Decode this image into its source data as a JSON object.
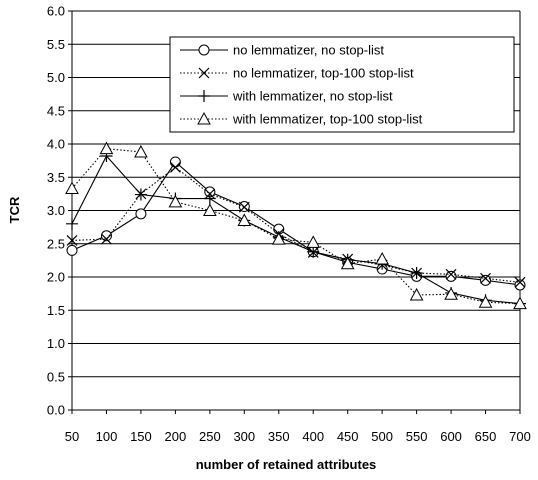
{
  "chart_data": {
    "type": "line",
    "title": "",
    "xlabel": "number of retained attributes",
    "ylabel": "TCR",
    "x": [
      50,
      100,
      150,
      200,
      250,
      300,
      350,
      400,
      450,
      500,
      550,
      600,
      650,
      700
    ],
    "ylim": [
      0,
      6
    ],
    "y_ticks": [
      0.0,
      0.5,
      1.0,
      1.5,
      2.0,
      2.5,
      3.0,
      3.5,
      4.0,
      4.5,
      5.0,
      5.5,
      6.0
    ],
    "y_tick_labels": [
      "0.0",
      "0.5",
      "1.0",
      "1.5",
      "2.0",
      "2.5",
      "3.0",
      "3.5",
      "4.0",
      "4.5",
      "5.0",
      "5.5",
      "6.0"
    ],
    "x_tick_labels": [
      "50",
      "100",
      "150",
      "200",
      "250",
      "300",
      "350",
      "400",
      "450",
      "500",
      "550",
      "600",
      "650",
      "700"
    ],
    "grid": "horizontal",
    "legend_position": "top-right",
    "series": [
      {
        "name": "no lemmatizer, no stop-list",
        "marker": "circle",
        "line_style": "solid",
        "values": [
          2.4,
          2.62,
          2.95,
          3.73,
          3.28,
          3.06,
          2.72,
          2.38,
          2.22,
          2.12,
          2.01,
          2.01,
          1.95,
          1.88
        ]
      },
      {
        "name": "no lemmatizer, top-100 stop-list",
        "marker": "x",
        "line_style": "dotted",
        "values": [
          2.55,
          2.57,
          3.25,
          3.65,
          3.25,
          3.05,
          2.65,
          2.37,
          2.27,
          2.18,
          2.06,
          2.04,
          1.98,
          1.92
        ]
      },
      {
        "name": "with lemmatizer, no stop-list",
        "marker": "plus",
        "line_style": "solid",
        "values": [
          2.8,
          3.82,
          3.24,
          3.18,
          3.18,
          2.85,
          2.6,
          2.38,
          2.26,
          2.2,
          2.06,
          1.76,
          1.65,
          1.6
        ]
      },
      {
        "name": "with lemmatizer, top-100 stop-list",
        "marker": "triangle",
        "line_style": "dotted",
        "values": [
          3.33,
          3.93,
          3.88,
          3.13,
          3.0,
          2.85,
          2.57,
          2.52,
          2.2,
          2.27,
          1.73,
          1.74,
          1.62,
          1.6
        ]
      }
    ]
  }
}
